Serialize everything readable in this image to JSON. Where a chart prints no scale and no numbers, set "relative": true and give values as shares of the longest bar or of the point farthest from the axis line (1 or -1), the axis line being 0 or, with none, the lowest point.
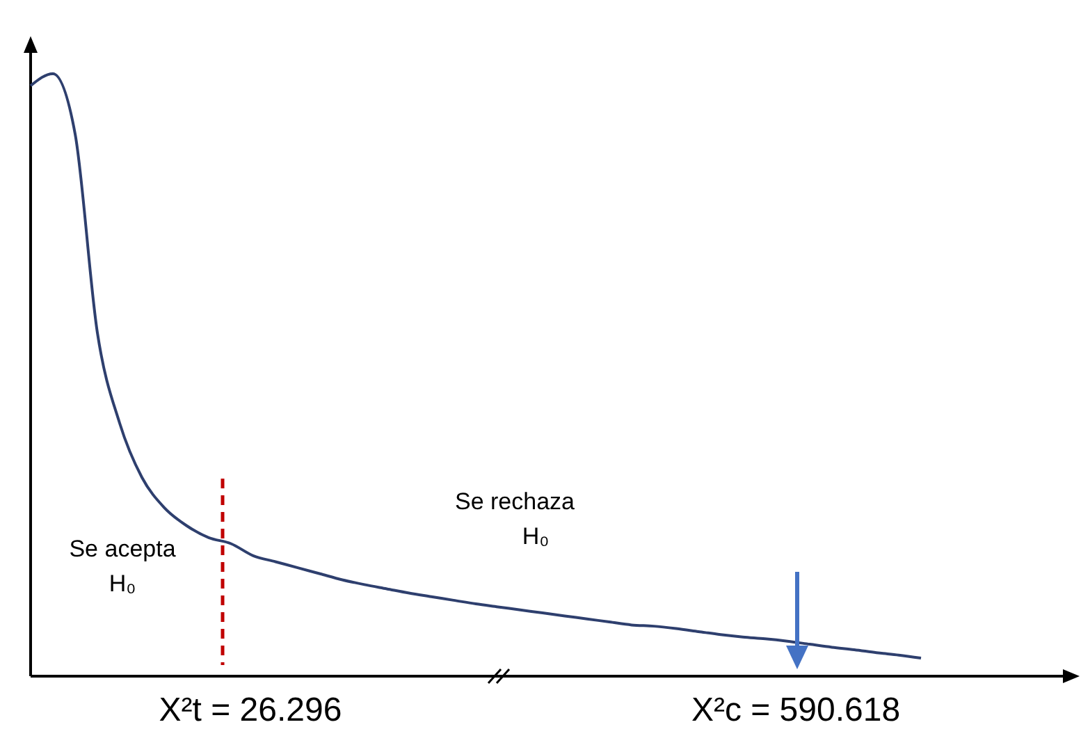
{
  "chart_data": {
    "type": "line",
    "relative": true,
    "tick_labels": false,
    "categories": [
      null,
      null,
      null,
      null,
      null,
      null,
      null,
      null,
      null,
      null,
      null,
      null,
      null,
      null,
      null,
      null,
      null,
      null,
      null,
      null,
      null,
      null,
      null,
      null,
      null,
      null,
      null,
      null,
      null,
      null,
      null,
      null,
      null,
      null,
      null,
      null,
      null,
      null,
      null,
      null,
      null,
      null,
      null,
      null,
      null,
      null,
      null
    ],
    "series": [
      {
        "color": "#2e3f6e",
        "values": [
          0.98,
          1.0,
          0.9,
          0.57,
          0.42,
          0.33,
          0.28,
          0.25,
          0.23,
          0.22,
          0.2,
          0.19,
          0.18,
          0.17,
          0.16,
          0.152,
          0.145,
          0.138,
          0.132,
          0.126,
          0.12,
          0.115,
          0.11,
          0.105,
          0.1,
          0.095,
          0.09,
          0.085,
          0.083,
          0.079,
          0.074,
          0.069,
          0.065,
          0.062,
          0.058,
          0.053,
          0.048,
          0.044,
          0.039,
          0.035,
          0.03,
          null,
          null,
          null,
          null,
          null,
          null
        ]
      }
    ],
    "annotations": [
      "Se acepta H₀",
      "Se rechaza H₀",
      "X²t = 26.296",
      "X²c = 590.618"
    ]
  }
}
